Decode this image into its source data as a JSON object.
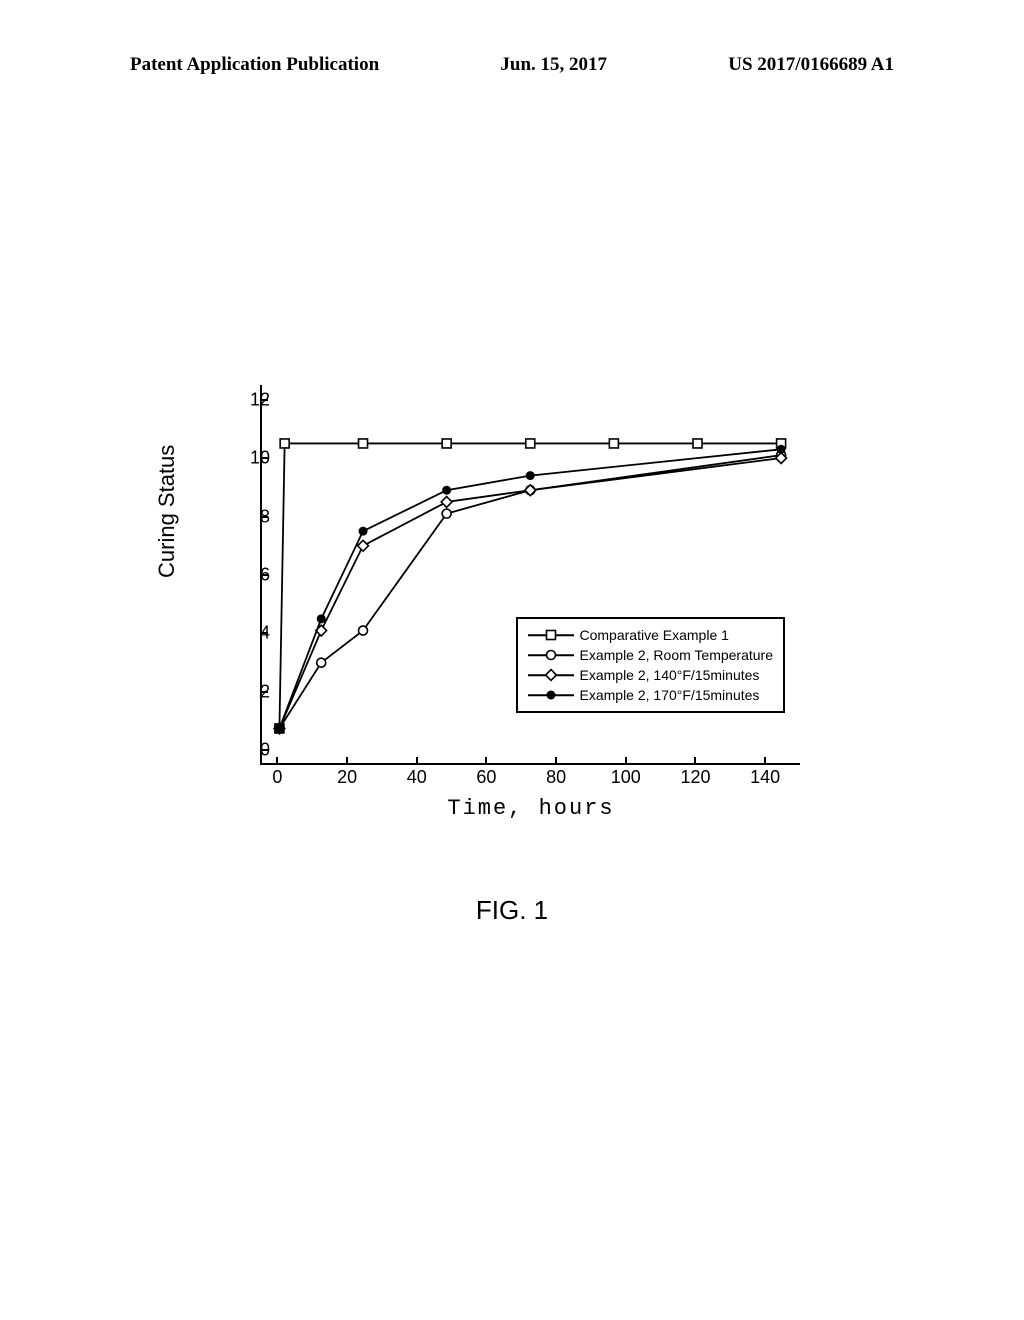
{
  "header": {
    "left": "Patent Application Publication",
    "center": "Jun. 15, 2017",
    "right": "US 2017/0166689 A1"
  },
  "figure_caption": "FIG. 1",
  "chart": {
    "type": "line",
    "xlabel": "Time, hours",
    "ylabel": "Curing Status",
    "xlim": [
      -5,
      150
    ],
    "ylim": [
      -0.5,
      12.5
    ],
    "xticks": [
      0,
      20,
      40,
      60,
      80,
      100,
      120,
      140
    ],
    "yticks": [
      0,
      2,
      4,
      6,
      8,
      10,
      12
    ],
    "background_color": "#ffffff",
    "axis_color": "#000000",
    "line_width": 1.8,
    "marker_size": 9,
    "legend": {
      "position": "lower-right",
      "items": [
        {
          "label": "Comparative Example 1",
          "marker": "open-square",
          "color": "#000000"
        },
        {
          "label": "Example 2, Room Temperature",
          "marker": "open-circle",
          "color": "#000000"
        },
        {
          "label": "Example 2, 140°F/15minutes",
          "marker": "open-diamond",
          "color": "#000000"
        },
        {
          "label": "Example 2, 170°F/15minutes",
          "marker": "filled-circle",
          "color": "#000000"
        }
      ]
    },
    "series": [
      {
        "name": "Comparative Example 1",
        "marker": "open-square",
        "color": "#000000",
        "x": [
          0,
          1.5,
          24,
          48,
          72,
          96,
          120,
          144
        ],
        "y": [
          0.75,
          10.5,
          10.5,
          10.5,
          10.5,
          10.5,
          10.5,
          10.5
        ]
      },
      {
        "name": "Example 2, Room Temperature",
        "marker": "open-circle",
        "color": "#000000",
        "x": [
          0,
          12,
          24,
          48,
          72,
          144
        ],
        "y": [
          0.75,
          3.0,
          4.1,
          8.1,
          8.9,
          10.1
        ]
      },
      {
        "name": "Example 2, 140°F/15minutes",
        "marker": "open-diamond",
        "color": "#000000",
        "x": [
          0,
          12,
          24,
          48,
          72,
          144
        ],
        "y": [
          0.75,
          4.1,
          7.0,
          8.5,
          8.9,
          10.0
        ]
      },
      {
        "name": "Example 2, 170°F/15minutes",
        "marker": "filled-circle",
        "color": "#000000",
        "x": [
          0,
          12,
          24,
          48,
          72,
          144
        ],
        "y": [
          0.75,
          4.5,
          7.5,
          8.9,
          9.4,
          10.3
        ]
      }
    ]
  }
}
